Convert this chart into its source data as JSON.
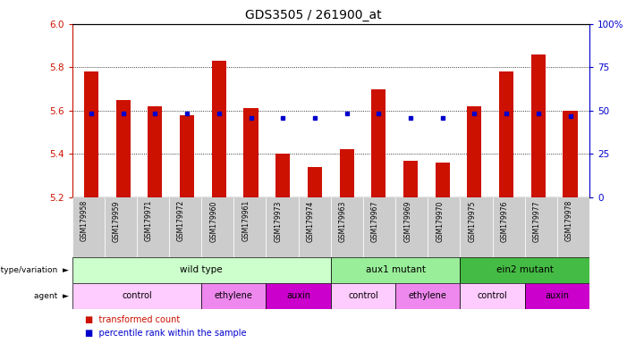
{
  "title": "GDS3505 / 261900_at",
  "samples": [
    "GSM179958",
    "GSM179959",
    "GSM179971",
    "GSM179972",
    "GSM179960",
    "GSM179961",
    "GSM179973",
    "GSM179974",
    "GSM179963",
    "GSM179967",
    "GSM179969",
    "GSM179970",
    "GSM179975",
    "GSM179976",
    "GSM179977",
    "GSM179978"
  ],
  "bar_values": [
    5.78,
    5.65,
    5.62,
    5.58,
    5.83,
    5.61,
    5.4,
    5.34,
    5.42,
    5.7,
    5.37,
    5.36,
    5.62,
    5.78,
    5.86,
    5.6
  ],
  "blue_dot_values": [
    5.585,
    5.585,
    5.585,
    5.585,
    5.585,
    5.565,
    5.565,
    5.565,
    5.585,
    5.585,
    5.565,
    5.565,
    5.585,
    5.585,
    5.585,
    5.575
  ],
  "bar_base": 5.2,
  "ylim_left": [
    5.2,
    6.0
  ],
  "ylim_right": [
    0,
    100
  ],
  "yticks_left": [
    5.2,
    5.4,
    5.6,
    5.8,
    6.0
  ],
  "yticks_right": [
    0,
    25,
    50,
    75,
    100
  ],
  "bar_color": "#cc1100",
  "dot_color": "#0000cc",
  "background_color": "#ffffff",
  "genotype_groups": [
    {
      "label": "wild type",
      "start": 0,
      "end": 8,
      "color": "#ccffcc"
    },
    {
      "label": "aux1 mutant",
      "start": 8,
      "end": 12,
      "color": "#99ee99"
    },
    {
      "label": "ein2 mutant",
      "start": 12,
      "end": 16,
      "color": "#44bb44"
    }
  ],
  "agent_groups": [
    {
      "label": "control",
      "start": 0,
      "end": 4,
      "color": "#ffccff"
    },
    {
      "label": "ethylene",
      "start": 4,
      "end": 6,
      "color": "#ee88ee"
    },
    {
      "label": "auxin",
      "start": 6,
      "end": 8,
      "color": "#cc00cc"
    },
    {
      "label": "control",
      "start": 8,
      "end": 10,
      "color": "#ffccff"
    },
    {
      "label": "ethylene",
      "start": 10,
      "end": 12,
      "color": "#ee88ee"
    },
    {
      "label": "control",
      "start": 12,
      "end": 14,
      "color": "#ffccff"
    },
    {
      "label": "auxin",
      "start": 14,
      "end": 16,
      "color": "#cc00cc"
    }
  ]
}
